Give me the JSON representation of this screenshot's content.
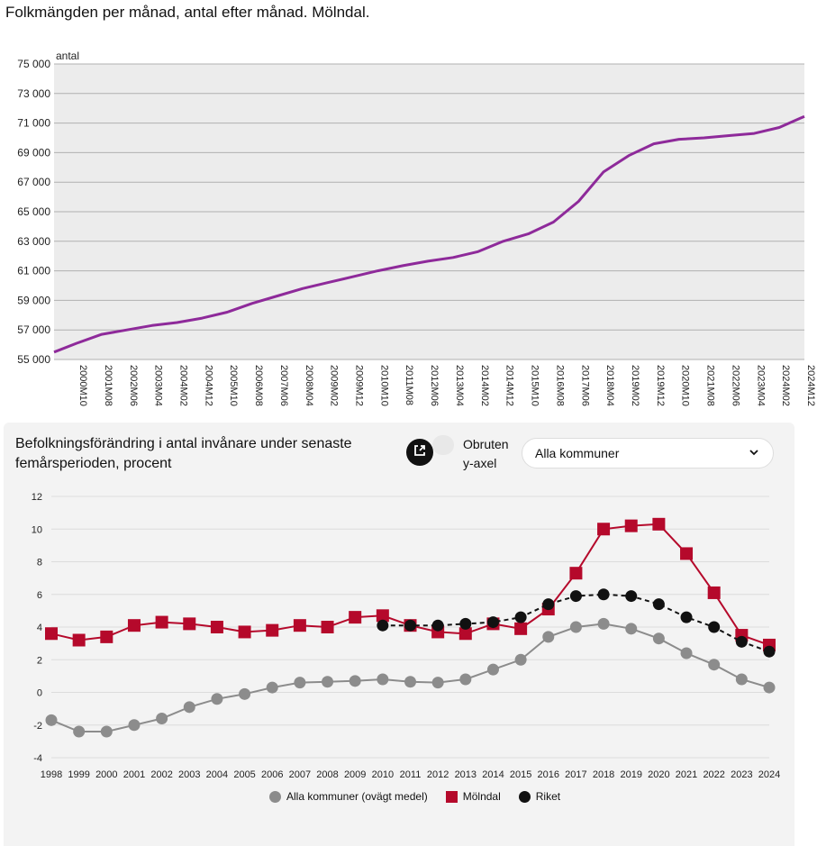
{
  "chart1_title": "Folkmängden per månad, antal efter månad. Mölndal.",
  "panel": {
    "title": "Befolkningsförändring i antal invånare under senaste femårsperioden, procent",
    "toggle_label": "Obruten y-axel",
    "select_value": "Alla kommuner",
    "icons": {
      "external": "external-link-icon",
      "dropdown": "chevron-down-icon"
    }
  },
  "chart_data": [
    {
      "type": "line",
      "title": "Folkmängden per månad, antal efter månad. Mölndal.",
      "ylabel": "antal",
      "ylim": [
        55000,
        75000
      ],
      "yticks": [
        55000,
        57000,
        59000,
        61000,
        63000,
        65000,
        67000,
        69000,
        71000,
        73000,
        75000
      ],
      "ytick_labels": [
        "55 000",
        "57 000",
        "59 000",
        "61 000",
        "63 000",
        "65 000",
        "67 000",
        "69 000",
        "71 000",
        "73 000",
        "75 000"
      ],
      "xtick_labels": [
        "2000M10",
        "2001M08",
        "2002M06",
        "2003M04",
        "2004M02",
        "2004M12",
        "2005M10",
        "2006M08",
        "2007M06",
        "2008M04",
        "2009M02",
        "2009M12",
        "2010M10",
        "2011M08",
        "2012M06",
        "2013M04",
        "2014M02",
        "2014M12",
        "2015M10",
        "2016M08",
        "2017M06",
        "2018M04",
        "2019M02",
        "2019M12",
        "2020M10",
        "2021M08",
        "2022M06",
        "2023M04",
        "2024M02",
        "2024M12"
      ],
      "grid": true,
      "color": "#8e2a9a",
      "series": [
        {
          "x": [
            "2000M01",
            "2000M10",
            "2001M08",
            "2002M06",
            "2003M04",
            "2004M02",
            "2004M12",
            "2005M10",
            "2006M08",
            "2007M06",
            "2008M04",
            "2009M02",
            "2009M12",
            "2010M10",
            "2011M08",
            "2012M06",
            "2013M04",
            "2014M02",
            "2014M12",
            "2015M10",
            "2016M08",
            "2017M06",
            "2018M04",
            "2019M02",
            "2019M12",
            "2020M10",
            "2021M08",
            "2022M06",
            "2023M04",
            "2024M02",
            "2024M12"
          ],
          "values": [
            55500,
            56100,
            56700,
            57000,
            57300,
            57500,
            57800,
            58200,
            58800,
            59300,
            59800,
            60200,
            60600,
            61000,
            61350,
            61650,
            61900,
            62300,
            63000,
            63500,
            64300,
            65700,
            67700,
            68800,
            69600,
            69900,
            70000,
            70150,
            70300,
            70700,
            71450
          ]
        }
      ]
    },
    {
      "type": "line",
      "title": "Befolkningsförändring i antal invånare under senaste femårsperioden, procent",
      "ylim": [
        -4,
        12
      ],
      "yticks": [
        -4,
        -2,
        0,
        2,
        4,
        6,
        8,
        10,
        12
      ],
      "ytick_labels": [
        "-4",
        "-2",
        "0",
        "2",
        "4",
        "6",
        "8",
        "10",
        "12"
      ],
      "categories": [
        "1998",
        "1999",
        "2000",
        "2001",
        "2002",
        "2003",
        "2004",
        "2005",
        "2006",
        "2007",
        "2008",
        "2009",
        "2010",
        "2011",
        "2012",
        "2013",
        "2014",
        "2015",
        "2016",
        "2017",
        "2018",
        "2019",
        "2020",
        "2021",
        "2022",
        "2023",
        "2024"
      ],
      "grid": true,
      "legend": "bottom",
      "series": [
        {
          "name": "Alla kommuner (ovägt medel)",
          "color": "#8c8c8c",
          "marker": "circle",
          "dash": false,
          "values": [
            -1.7,
            -2.4,
            -2.4,
            -2.0,
            -1.6,
            -0.9,
            -0.4,
            -0.1,
            0.3,
            0.6,
            0.65,
            0.7,
            0.8,
            0.65,
            0.6,
            0.8,
            1.4,
            2.0,
            3.4,
            4.0,
            4.2,
            3.9,
            3.3,
            2.4,
            1.7,
            0.8,
            0.3
          ]
        },
        {
          "name": "Mölndal",
          "color": "#b5092b",
          "marker": "square",
          "dash": false,
          "values": [
            3.6,
            3.2,
            3.4,
            4.1,
            4.3,
            4.2,
            4.0,
            3.7,
            3.8,
            4.1,
            4.0,
            4.6,
            4.7,
            4.1,
            3.7,
            3.6,
            4.2,
            3.9,
            5.1,
            7.3,
            10.0,
            10.2,
            10.3,
            8.5,
            6.1,
            3.5,
            2.9
          ]
        },
        {
          "name": "Riket",
          "color": "#111111",
          "marker": "circle",
          "dash": true,
          "values": [
            null,
            null,
            null,
            null,
            null,
            null,
            null,
            null,
            null,
            null,
            null,
            null,
            4.1,
            4.1,
            4.1,
            4.2,
            4.3,
            4.6,
            5.4,
            5.9,
            6.0,
            5.9,
            5.4,
            4.6,
            4.0,
            3.1,
            2.5
          ]
        }
      ]
    }
  ]
}
